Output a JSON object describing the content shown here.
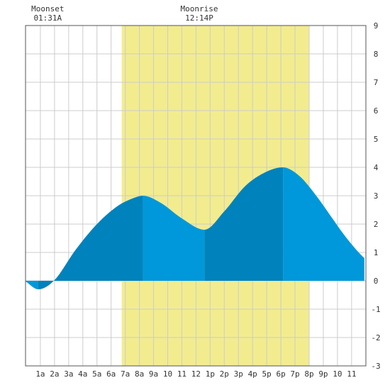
{
  "chart_data": {
    "type": "area",
    "title": "",
    "xlabel": "",
    "ylabel": "",
    "ylim": [
      -3,
      9
    ],
    "xlim": [
      -0.05,
      23.9
    ],
    "grid": true,
    "yticks": [
      -3,
      -2,
      -1,
      0,
      1,
      2,
      3,
      4,
      5,
      6,
      7,
      8,
      9
    ],
    "xtick_labels": [
      "1a",
      "2a",
      "3a",
      "4a",
      "5a",
      "6a",
      "7a",
      "8a",
      "9a",
      "10",
      "11",
      "12",
      "1p",
      "2p",
      "3p",
      "4p",
      "5p",
      "6p",
      "7p",
      "8p",
      "9p",
      "10",
      "11"
    ],
    "daylight": {
      "start": 6.75,
      "end": 20.0
    },
    "moon_events": [
      {
        "label": "Moonset",
        "time": "01:31A",
        "hour": 1.52
      },
      {
        "label": "Moonrise",
        "time": "12:14P",
        "hour": 12.23
      }
    ],
    "tide_extremes": [
      {
        "hour": 0.85,
        "value": -0.3
      },
      {
        "hour": 8.25,
        "value": 3.0
      },
      {
        "hour": 12.6,
        "value": 1.8
      },
      {
        "hour": 18.15,
        "value": 4.0
      }
    ],
    "series": [
      {
        "x": [
          -0.05,
          0.85,
          1.95,
          3.5,
          5.0,
          6.5,
          7.5,
          8.25,
          9.5,
          11.0,
          12.6,
          14.0,
          15.5,
          17.0,
          18.15,
          19.3,
          20.5,
          21.5,
          22.5,
          23.5,
          23.9
        ],
        "values": [
          -0.02,
          -0.3,
          0.0,
          1.1,
          2.0,
          2.65,
          2.9,
          3.0,
          2.75,
          2.2,
          1.8,
          2.45,
          3.35,
          3.85,
          4.0,
          3.7,
          3.0,
          2.3,
          1.6,
          1.0,
          0.8
        ]
      }
    ],
    "colors": {
      "fill_light": "#0098da",
      "fill_dark": "#0082bc",
      "daylight": "#f2ec8f",
      "grid": "#cccccc",
      "axis": "#555555"
    }
  }
}
